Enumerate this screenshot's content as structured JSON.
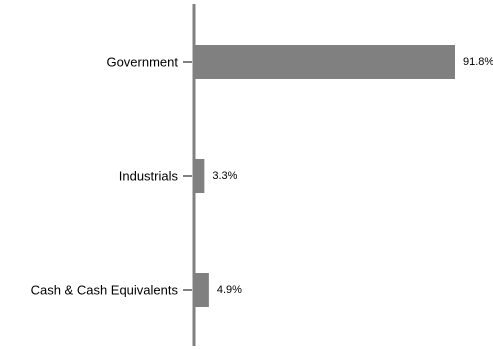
{
  "chart_data": {
    "type": "bar",
    "orientation": "horizontal",
    "categories": [
      "Government",
      "Industrials",
      "Cash & Cash Equivalents"
    ],
    "values": [
      91.8,
      3.3,
      4.9
    ],
    "value_labels": [
      "91.8%",
      "3.3%",
      "4.9%"
    ],
    "title": "",
    "xlabel": "",
    "ylabel": "",
    "xlim": [
      0,
      100
    ],
    "grid": false,
    "legend": "none",
    "colors": {
      "bar": "#808080",
      "axis": "#808080",
      "text": "#000000"
    }
  }
}
